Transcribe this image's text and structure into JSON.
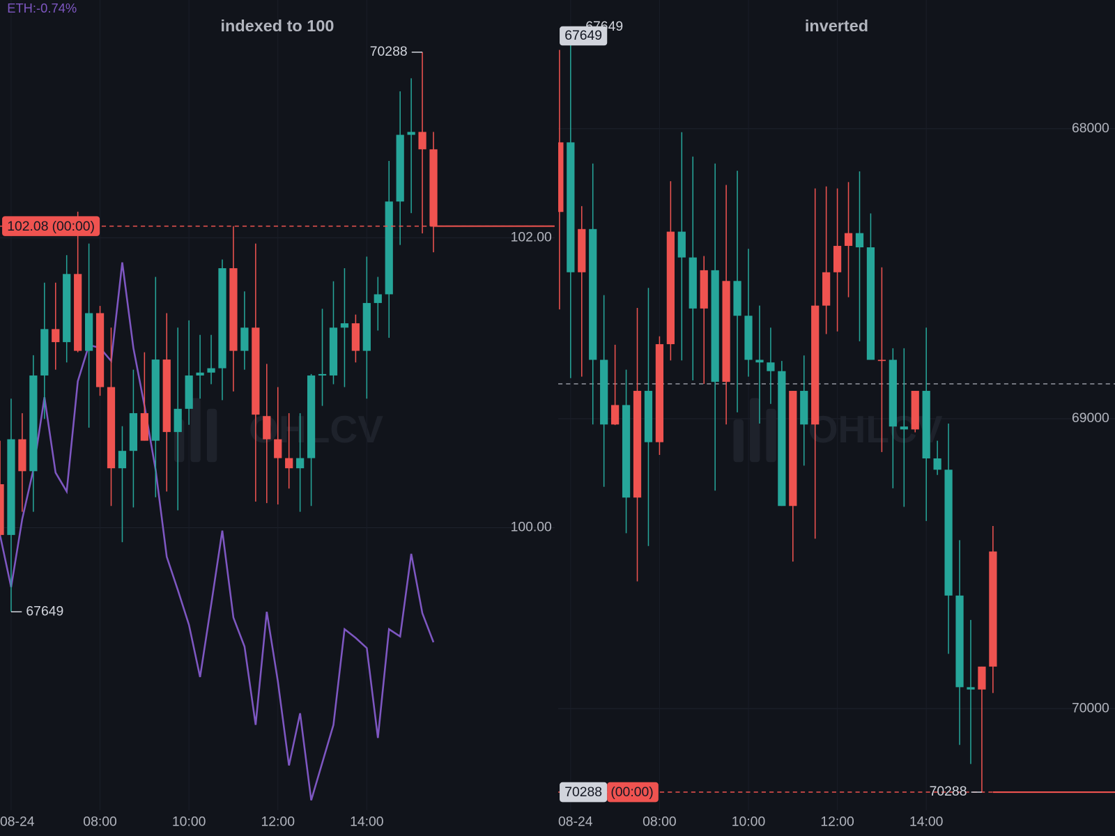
{
  "chart_data": [
    {
      "type": "candlestick",
      "title": "indexed to 100",
      "categories": [
        null,
        "08-24",
        null,
        null,
        null,
        null,
        null,
        null,
        null,
        "08:00",
        null,
        null,
        null,
        null,
        null,
        null,
        null,
        "10:00",
        null,
        null,
        null,
        null,
        null,
        null,
        null,
        "12:00",
        null,
        null,
        null,
        null,
        null,
        null,
        null,
        "14:00",
        null,
        null,
        null,
        null,
        null,
        null
      ],
      "open": [
        100.3,
        99.95,
        100.61,
        100.39,
        101.05,
        101.37,
        101.28,
        101.75,
        101.22,
        101.48,
        100.97,
        100.41,
        100.53,
        100.79,
        100.6,
        101.16,
        100.66,
        100.82,
        101.05,
        101.07,
        101.1,
        101.79,
        101.22,
        101.38,
        100.77,
        100.61,
        100.48,
        100.41,
        100.48,
        101.05,
        101.05,
        101.38,
        101.41,
        101.22,
        101.55,
        101.61,
        102.25,
        102.71,
        102.73,
        102.61
      ],
      "high": [
        100.6,
        100.89,
        100.79,
        101.19,
        101.69,
        101.69,
        101.88,
        102.18,
        101.96,
        101.53,
        101.38,
        100.7,
        101.09,
        101.21,
        101.73,
        101.48,
        101.38,
        101.43,
        101.33,
        101.33,
        101.85,
        102.08,
        101.63,
        101.96,
        101.13,
        100.97,
        100.79,
        100.79,
        101.06,
        101.51,
        101.7,
        101.79,
        101.47,
        101.87,
        101.73,
        102.53,
        103.01,
        103.1,
        103.28,
        102.73
      ],
      "low": [
        99.94,
        99.42,
        100.11,
        100.11,
        100.75,
        101.09,
        101.14,
        101.21,
        100.69,
        100.91,
        100.15,
        99.9,
        100.14,
        100.6,
        100.21,
        100.25,
        100.12,
        100.71,
        100.89,
        100.99,
        100.88,
        100.94,
        101.09,
        100.18,
        100.17,
        100.16,
        100.27,
        100.11,
        100.15,
        100.84,
        100.99,
        100.97,
        101.14,
        100.89,
        101.36,
        101.31,
        101.95,
        102.17,
        102.03,
        101.9
      ],
      "close": [
        99.95,
        100.61,
        100.39,
        101.05,
        101.37,
        101.28,
        101.75,
        101.22,
        101.48,
        100.97,
        100.41,
        100.53,
        100.79,
        100.6,
        101.16,
        100.66,
        100.82,
        101.05,
        101.07,
        101.1,
        101.79,
        101.22,
        101.38,
        100.78,
        100.61,
        100.48,
        100.41,
        100.48,
        101.05,
        101.06,
        101.38,
        101.41,
        101.22,
        101.55,
        101.61,
        102.25,
        102.71,
        102.73,
        102.61,
        102.08
      ],
      "up_color": "#26a69a",
      "down_color": "#ef5350",
      "ylim": [
        98.05,
        103.64
      ],
      "yticks": [
        {
          "value": 100,
          "label": "100.00"
        },
        {
          "value": 102,
          "label": "102.00"
        }
      ],
      "grid": true,
      "inverted": false,
      "price_line": {
        "value": 102.08,
        "label": "102.08",
        "countdown": "(00:00)",
        "color": "#ef5350"
      },
      "high_label": "70288",
      "low_label": "67649",
      "watermark": "OHLCV",
      "compare": {
        "name": "ETH:-0.74%",
        "color": "#7e57c2",
        "values": [
          99.95,
          99.59,
          100.06,
          100.4,
          100.9,
          100.38,
          100.25,
          101.01,
          101.26,
          101.24,
          101.15,
          101.83,
          101.24,
          100.84,
          100.4,
          99.8,
          99.57,
          99.33,
          98.97,
          99.47,
          99.98,
          99.38,
          99.18,
          98.64,
          99.42,
          98.94,
          98.36,
          98.72,
          98.12,
          98.38,
          98.64,
          99.3,
          99.24,
          99.17,
          98.55,
          99.3,
          99.25,
          99.82,
          99.41,
          99.21
        ]
      }
    },
    {
      "type": "candlestick",
      "title": "inverted",
      "categories": [
        null,
        "08-24",
        null,
        null,
        null,
        null,
        null,
        null,
        null,
        "08:00",
        null,
        null,
        null,
        null,
        null,
        null,
        null,
        "10:00",
        null,
        null,
        null,
        null,
        null,
        null,
        null,
        "12:00",
        null,
        null,
        null,
        null,
        null,
        null,
        null,
        "14:00",
        null,
        null,
        null,
        null,
        null,
        null
      ],
      "open": [
        68287,
        68047,
        68495,
        68346,
        68797,
        69020,
        68953,
        69272,
        68904,
        69081,
        68743,
        68355,
        68444,
        68620,
        68488,
        68873,
        68525,
        68645,
        68797,
        68806,
        68836,
        69301,
        68904,
        69020,
        68610,
        68495,
        68404,
        68360,
        68409,
        68801,
        68797,
        69027,
        69037,
        68904,
        69137,
        69176,
        69610,
        69926,
        69934,
        69855
      ],
      "high": [
        68623,
        68860,
        68855,
        69020,
        69235,
        69022,
        69395,
        69561,
        69439,
        69125,
        68799,
        68799,
        68868,
        68880,
        69248,
        69020,
        68978,
        68855,
        69017,
        68949,
        69301,
        69493,
        69162,
        69414,
        68708,
        68699,
        68581,
        68733,
        68797,
        69115,
        69240,
        69304,
        69047,
        69353,
        69194,
        69811,
        70125,
        70191,
        70288,
        69946
      ],
      "low": [
        67728,
        67649,
        68267,
        68120,
        68574,
        68745,
        68831,
        68618,
        68549,
        68716,
        68181,
        68012,
        68096,
        68439,
        68120,
        68194,
        68145,
        68414,
        68610,
        68686,
        68801,
        68904,
        68782,
        68206,
        68199,
        68206,
        68184,
        68147,
        68292,
        68478,
        68757,
        68757,
        68904,
        68686,
        69076,
        69017,
        69419,
        69694,
        69855,
        69370
      ],
      "close": [
        68047,
        68495,
        68346,
        68797,
        69020,
        68953,
        69272,
        68904,
        69081,
        68743,
        68355,
        68444,
        68620,
        68488,
        68873,
        68525,
        68645,
        68797,
        68806,
        68836,
        69301,
        68904,
        69020,
        68610,
        68495,
        68404,
        68360,
        68409,
        68797,
        68797,
        69027,
        69037,
        68904,
        69137,
        69176,
        69610,
        69926,
        69934,
        69855,
        69458
      ],
      "up_color": "#26a69a",
      "down_color": "#ef5350",
      "ylim": [
        67556,
        70351
      ],
      "yticks": [
        68000,
        69000,
        70000
      ],
      "grid": true,
      "inverted": true,
      "reference_line": 68880,
      "price_line": {
        "value": 70288,
        "label": "70288",
        "countdown": "(00:00)",
        "color": "#ef5350"
      },
      "high_label": "70288",
      "low_label": "67649",
      "watermark": "OHLCV"
    }
  ]
}
